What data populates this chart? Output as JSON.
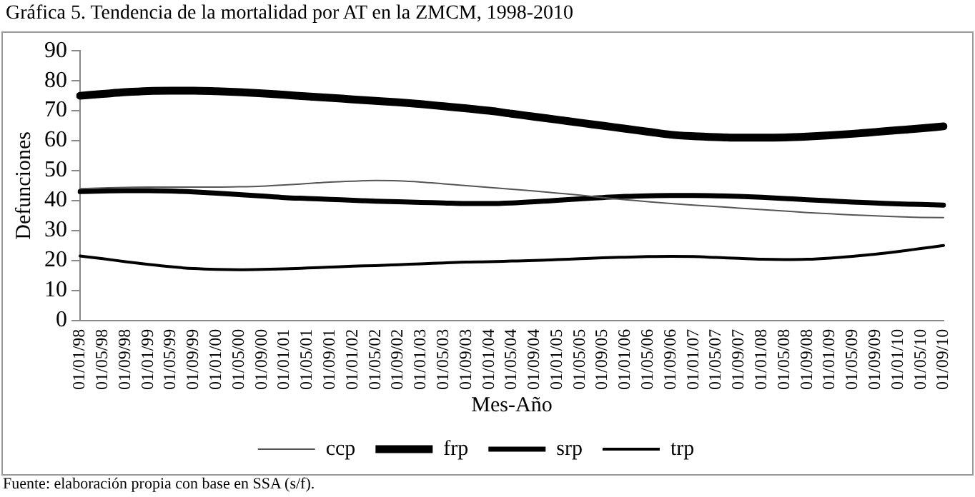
{
  "chart_data": {
    "type": "line",
    "title": "Gráfica 5. Tendencia de la mortalidad por AT en la ZMCM, 1998-2010",
    "xlabel": "Mes-Año",
    "ylabel": "Defunciones",
    "categories": [
      "01/01/98",
      "01/05/98",
      "01/09/98",
      "01/01/99",
      "01/05/99",
      "01/09/99",
      "01/01/00",
      "01/05/00",
      "01/09/00",
      "01/01/01",
      "01/05/01",
      "01/09/01",
      "01/01/02",
      "01/05/02",
      "01/09/02",
      "01/01/03",
      "01/05/03",
      "01/09/03",
      "01/01/04",
      "01/05/04",
      "01/09/04",
      "01/01/05",
      "01/05/05",
      "01/09/05",
      "01/01/06",
      "01/05/06",
      "01/09/06",
      "01/01/07",
      "01/05/07",
      "01/09/07",
      "01/01/08",
      "01/05/08",
      "01/09/08",
      "01/01/09",
      "01/05/09",
      "01/09/09",
      "01/01/10",
      "01/05/10",
      "01/09/10"
    ],
    "series": [
      {
        "name": "ccp",
        "color": "#555555",
        "values": [
          44,
          44.2,
          44.4,
          44.5,
          44.5,
          44.5,
          44.5,
          44.6,
          44.8,
          45.2,
          45.7,
          46.2,
          46.5,
          46.7,
          46.6,
          46.2,
          45.6,
          45,
          44.4,
          43.8,
          43.2,
          42.5,
          41.8,
          41,
          40.3,
          39.6,
          39,
          38.5,
          38,
          37.5,
          37,
          36.5,
          36,
          35.6,
          35.2,
          34.9,
          34.6,
          34.4,
          34.3
        ]
      },
      {
        "name": "frp",
        "color": "#000000",
        "values": [
          75,
          75.6,
          76.2,
          76.6,
          76.7,
          76.7,
          76.5,
          76.2,
          75.8,
          75.3,
          74.8,
          74.3,
          73.8,
          73.3,
          72.8,
          72.2,
          71.5,
          70.8,
          70,
          69,
          68,
          67,
          66,
          65,
          64,
          63,
          62,
          61.5,
          61.2,
          61,
          61,
          61.1,
          61.4,
          61.8,
          62.3,
          62.9,
          63.5,
          64.1,
          64.8
        ]
      },
      {
        "name": "srp",
        "color": "#000000",
        "values": [
          43,
          43.2,
          43.3,
          43.3,
          43.2,
          42.9,
          42.5,
          42,
          41.5,
          41,
          40.7,
          40.4,
          40.1,
          39.8,
          39.6,
          39.4,
          39.2,
          39,
          39,
          39.2,
          39.6,
          40.1,
          40.6,
          41,
          41.4,
          41.6,
          41.7,
          41.7,
          41.6,
          41.4,
          41.1,
          40.7,
          40.3,
          39.9,
          39.5,
          39.2,
          38.9,
          38.7,
          38.5
        ]
      },
      {
        "name": "trp",
        "color": "#000000",
        "values": [
          21.5,
          20.6,
          19.6,
          18.7,
          17.9,
          17.3,
          17,
          16.9,
          17,
          17.2,
          17.5,
          17.8,
          18.1,
          18.3,
          18.6,
          18.9,
          19.2,
          19.5,
          19.6,
          19.8,
          20,
          20.3,
          20.6,
          20.9,
          21.1,
          21.3,
          21.4,
          21.3,
          21,
          20.7,
          20.4,
          20.3,
          20.4,
          20.8,
          21.4,
          22.1,
          23,
          24,
          25
        ]
      }
    ],
    "ylim": [
      0,
      90
    ],
    "yticks": [
      0,
      10,
      20,
      30,
      40,
      50,
      60,
      70,
      80,
      90
    ],
    "grid": false,
    "legend": "bottom",
    "marker": "none",
    "line_style": "solid",
    "annotations": [
      "Fuente: elaboración propia con base en SSA (s/f)."
    ]
  }
}
